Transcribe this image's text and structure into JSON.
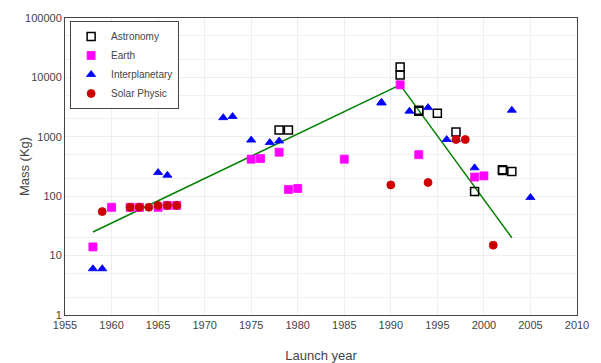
{
  "chart_data": {
    "type": "scatter",
    "xlabel": "Launch year",
    "ylabel": "Mass (Kg)",
    "xlim": [
      1955,
      2010
    ],
    "ylim": [
      1,
      100000
    ],
    "xticks": [
      1955,
      1960,
      1965,
      1970,
      1975,
      1980,
      1985,
      1990,
      1995,
      2000,
      2005,
      2010
    ],
    "yticks": [
      1,
      10,
      100,
      1000,
      10000,
      100000
    ],
    "log": "y",
    "grid": true,
    "legend": "upper left",
    "series": [
      {
        "type": "line",
        "color": "green",
        "x": [
          1958,
          1991
        ],
        "values": [
          25,
          7500
        ]
      },
      {
        "type": "line",
        "color": "green",
        "x": [
          1991,
          2003
        ],
        "values": [
          7500,
          20
        ]
      },
      {
        "type": "scatter",
        "name": "Astronomy",
        "color": "black",
        "marker": "square-open",
        "x": [
          1978,
          1979,
          1991,
          1991,
          1993,
          1993,
          1995,
          1997,
          1999,
          2002,
          2002,
          2003
        ],
        "values": [
          1300,
          1300,
          11000,
          15000,
          2700,
          2800,
          2500,
          1200,
          120,
          270,
          280,
          260
        ]
      },
      {
        "type": "scatter",
        "name": "Earth",
        "color": "#ff00ff",
        "marker": "square",
        "x": [
          1958,
          1960,
          1962,
          1963,
          1965,
          1966,
          1967,
          1975,
          1976,
          1978,
          1979,
          1980,
          1985,
          1991,
          1993,
          1999,
          2000
        ],
        "values": [
          14,
          65,
          65,
          65,
          65,
          70,
          70,
          420,
          430,
          550,
          130,
          135,
          420,
          7500,
          500,
          210,
          220
        ]
      },
      {
        "type": "scatter",
        "name": "Interplanetary",
        "color": "blue",
        "marker": "triangle-up",
        "x": [
          1958,
          1959,
          1965,
          1966,
          1972,
          1973,
          1975,
          1977,
          1978,
          1989,
          1989,
          1992,
          1994,
          1996,
          1997,
          1999,
          2003,
          2005
        ],
        "values": [
          6,
          6,
          250,
          225,
          2100,
          2200,
          880,
          800,
          850,
          3700,
          3800,
          2700,
          3100,
          900,
          900,
          300,
          2800,
          95
        ]
      },
      {
        "type": "scatter",
        "name": "Solar Physic",
        "color": "#cc0000",
        "marker": "circle",
        "x": [
          1959,
          1962,
          1963,
          1964,
          1965,
          1966,
          1967,
          1990,
          1994,
          1997,
          1998,
          2001
        ],
        "values": [
          55,
          65,
          65,
          65,
          70,
          70,
          70,
          155,
          170,
          900,
          900,
          15
        ]
      }
    ]
  }
}
